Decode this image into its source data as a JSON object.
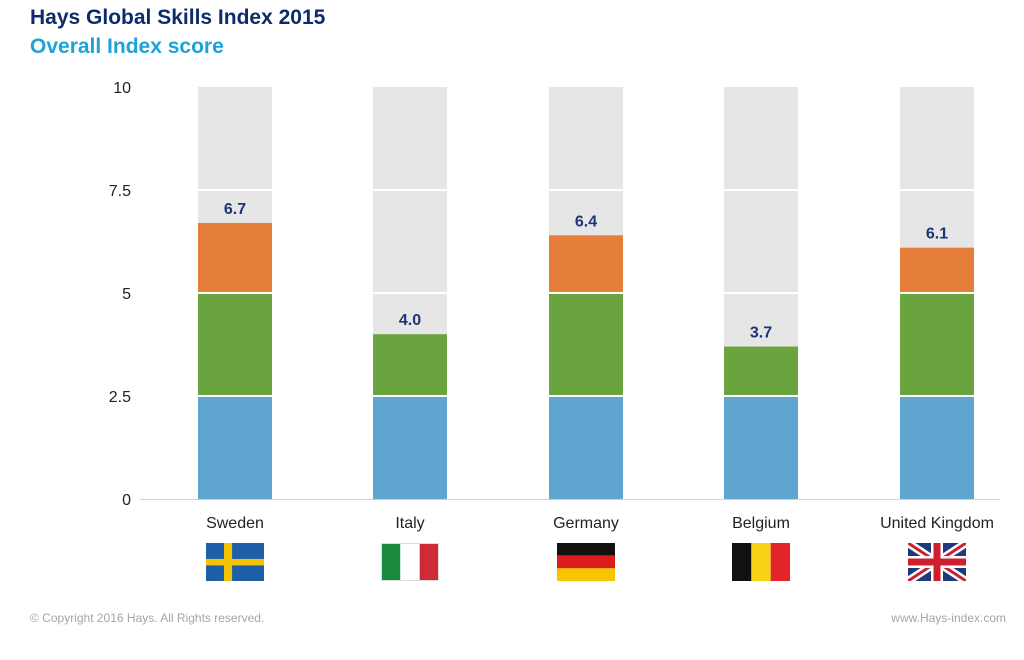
{
  "header": {
    "title": "Hays Global Skills Index 2015",
    "subtitle": "Overall Index score"
  },
  "footer": {
    "copyright": "© Copyright 2016 Hays. All Rights reserved.",
    "website": "www.Hays-index.com"
  },
  "chart_data": {
    "type": "bar",
    "stacked": true,
    "title": "Hays Global Skills Index 2015",
    "subtitle": "Overall Index score",
    "categories": [
      "Sweden",
      "Italy",
      "Germany",
      "Belgium",
      "United Kingdom"
    ],
    "totals": [
      6.7,
      4.0,
      6.4,
      3.7,
      6.1
    ],
    "total_labels": [
      "6.7",
      "4.0",
      "6.4",
      "3.7",
      "6.1"
    ],
    "bands": [
      {
        "from": 0,
        "to": 2.5,
        "color": "#5ea5d0"
      },
      {
        "from": 2.5,
        "to": 5,
        "color": "#6aa43f"
      },
      {
        "from": 5,
        "to": 7.5,
        "color": "#e57e3b"
      },
      {
        "from": 7.5,
        "to": 10,
        "color": "#e57e3b"
      }
    ],
    "background_color": "#e6e6e6",
    "label_color": "#1b3577",
    "ylim": [
      0,
      10
    ],
    "yticks": [
      0,
      2.5,
      5,
      7.5,
      10
    ],
    "ytick_labels": [
      "0",
      "2.5",
      "5",
      "7.5",
      "10"
    ],
    "grid": false,
    "legend": "none",
    "flags": [
      "sweden-flag-icon",
      "italy-flag-icon",
      "germany-flag-icon",
      "belgium-flag-icon",
      "uk-flag-icon"
    ]
  }
}
